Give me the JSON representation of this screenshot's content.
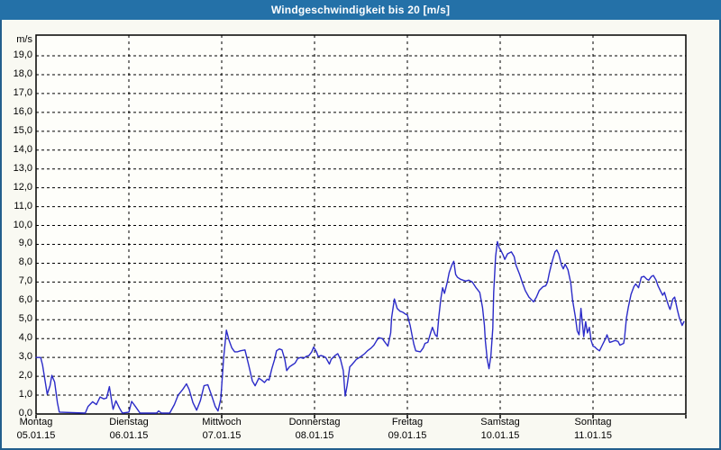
{
  "window": {
    "title": "Windgeschwindigkeit bis 20 [m/s]"
  },
  "colors": {
    "title_bar_bg": "#2471a8",
    "title_text": "#ffffff",
    "frame_border": "#235e8c",
    "window_bg": "#f9f9f2",
    "plot_bg": "#fefefa",
    "grid": "#000000",
    "axis_border": "#000000",
    "axis_text": "#000000",
    "line": "#2b2bc8"
  },
  "chart_data": {
    "type": "line",
    "title": "Windgeschwindigkeit bis 20 [m/s]",
    "xlabel": "",
    "ylabel": "m/s",
    "ylim": [
      0,
      20.1
    ],
    "y_tick_labels": [
      "0,0",
      "1,0",
      "2,0",
      "3,0",
      "4,0",
      "5,0",
      "6,0",
      "7,0",
      "8,0",
      "9,0",
      "10,0",
      "11,0",
      "12,0",
      "13,0",
      "14,0",
      "15,0",
      "16,0",
      "17,0",
      "18,0",
      "19,0"
    ],
    "grid": "dashed",
    "legend": "none",
    "x_range_days": [
      0,
      7
    ],
    "x_axis_days": [
      {
        "weekday": "Montag",
        "date": "05.01.15"
      },
      {
        "weekday": "Dienstag",
        "date": "06.01.15"
      },
      {
        "weekday": "Mittwoch",
        "date": "07.01.15"
      },
      {
        "weekday": "Donnerstag",
        "date": "08.01.15"
      },
      {
        "weekday": "Freitag",
        "date": "09.01.15"
      },
      {
        "weekday": "Samstag",
        "date": "10.01.15"
      },
      {
        "weekday": "Sonntag",
        "date": "11.01.15"
      }
    ],
    "series": [
      {
        "name": "Windgeschwindigkeit",
        "unit": "m/s",
        "color": "#2b2bc8",
        "points": [
          [
            0.0,
            3.0
          ],
          [
            0.05,
            3.0
          ],
          [
            0.07,
            2.6
          ],
          [
            0.12,
            1.05
          ],
          [
            0.15,
            1.5
          ],
          [
            0.17,
            2.05
          ],
          [
            0.2,
            1.7
          ],
          [
            0.23,
            0.6
          ],
          [
            0.25,
            0.1
          ],
          [
            0.53,
            0.05
          ],
          [
            0.56,
            0.4
          ],
          [
            0.61,
            0.65
          ],
          [
            0.65,
            0.5
          ],
          [
            0.69,
            0.9
          ],
          [
            0.73,
            0.8
          ],
          [
            0.76,
            0.85
          ],
          [
            0.79,
            1.45
          ],
          [
            0.82,
            0.5
          ],
          [
            0.83,
            0.25
          ],
          [
            0.86,
            0.7
          ],
          [
            0.9,
            0.3
          ],
          [
            0.93,
            0.05
          ],
          [
            1.0,
            0.1
          ],
          [
            1.03,
            0.67
          ],
          [
            1.07,
            0.4
          ],
          [
            1.12,
            0.05
          ],
          [
            1.3,
            0.05
          ],
          [
            1.32,
            0.16
          ],
          [
            1.35,
            0.05
          ],
          [
            1.44,
            0.05
          ],
          [
            1.49,
            0.5
          ],
          [
            1.53,
            1.0
          ],
          [
            1.58,
            1.3
          ],
          [
            1.62,
            1.6
          ],
          [
            1.65,
            1.3
          ],
          [
            1.69,
            0.6
          ],
          [
            1.73,
            0.2
          ],
          [
            1.77,
            0.7
          ],
          [
            1.81,
            1.5
          ],
          [
            1.85,
            1.55
          ],
          [
            1.89,
            1.0
          ],
          [
            1.93,
            0.4
          ],
          [
            1.96,
            0.16
          ],
          [
            1.99,
            0.8
          ],
          [
            2.02,
            2.95
          ],
          [
            2.05,
            4.45
          ],
          [
            2.08,
            3.9
          ],
          [
            2.11,
            3.5
          ],
          [
            2.14,
            3.3
          ],
          [
            2.17,
            3.3
          ],
          [
            2.2,
            3.35
          ],
          [
            2.25,
            3.4
          ],
          [
            2.29,
            2.6
          ],
          [
            2.33,
            1.75
          ],
          [
            2.36,
            1.5
          ],
          [
            2.4,
            1.9
          ],
          [
            2.43,
            1.8
          ],
          [
            2.46,
            1.67
          ],
          [
            2.49,
            1.85
          ],
          [
            2.51,
            1.8
          ],
          [
            2.54,
            2.4
          ],
          [
            2.57,
            2.9
          ],
          [
            2.59,
            3.35
          ],
          [
            2.62,
            3.45
          ],
          [
            2.65,
            3.4
          ],
          [
            2.68,
            2.9
          ],
          [
            2.7,
            2.3
          ],
          [
            2.73,
            2.5
          ],
          [
            2.76,
            2.6
          ],
          [
            2.79,
            2.7
          ],
          [
            2.82,
            2.95
          ],
          [
            2.85,
            3.0
          ],
          [
            2.88,
            2.95
          ],
          [
            2.91,
            3.05
          ],
          [
            2.94,
            3.1
          ],
          [
            2.97,
            3.3
          ],
          [
            2.99,
            3.55
          ],
          [
            3.02,
            3.3
          ],
          [
            3.04,
            3.05
          ],
          [
            3.07,
            3.1
          ],
          [
            3.1,
            3.05
          ],
          [
            3.12,
            3.0
          ],
          [
            3.16,
            2.65
          ],
          [
            3.18,
            2.9
          ],
          [
            3.22,
            3.1
          ],
          [
            3.25,
            3.2
          ],
          [
            3.28,
            2.9
          ],
          [
            3.31,
            2.3
          ],
          [
            3.33,
            0.95
          ],
          [
            3.35,
            1.5
          ],
          [
            3.38,
            2.5
          ],
          [
            3.4,
            2.6
          ],
          [
            3.45,
            2.9
          ],
          [
            3.5,
            3.05
          ],
          [
            3.54,
            3.2
          ],
          [
            3.57,
            3.35
          ],
          [
            3.61,
            3.5
          ],
          [
            3.64,
            3.65
          ],
          [
            3.67,
            3.9
          ],
          [
            3.69,
            4.05
          ],
          [
            3.73,
            4.0
          ],
          [
            3.76,
            3.8
          ],
          [
            3.79,
            3.6
          ],
          [
            3.82,
            4.3
          ],
          [
            3.83,
            5.1
          ],
          [
            3.86,
            6.1
          ],
          [
            3.89,
            5.6
          ],
          [
            3.92,
            5.45
          ],
          [
            3.95,
            5.4
          ],
          [
            3.98,
            5.3
          ],
          [
            4.0,
            5.25
          ],
          [
            4.03,
            4.7
          ],
          [
            4.05,
            4.2
          ],
          [
            4.07,
            3.7
          ],
          [
            4.09,
            3.35
          ],
          [
            4.14,
            3.3
          ],
          [
            4.17,
            3.5
          ],
          [
            4.19,
            3.75
          ],
          [
            4.22,
            3.8
          ],
          [
            4.25,
            4.3
          ],
          [
            4.27,
            4.6
          ],
          [
            4.3,
            4.2
          ],
          [
            4.32,
            4.1
          ],
          [
            4.34,
            5.2
          ],
          [
            4.36,
            6.1
          ],
          [
            4.38,
            6.7
          ],
          [
            4.4,
            6.4
          ],
          [
            4.43,
            7.0
          ],
          [
            4.45,
            7.5
          ],
          [
            4.48,
            7.9
          ],
          [
            4.5,
            8.1
          ],
          [
            4.52,
            7.4
          ],
          [
            4.54,
            7.25
          ],
          [
            4.57,
            7.15
          ],
          [
            4.6,
            7.1
          ],
          [
            4.63,
            7.05
          ],
          [
            4.66,
            7.1
          ],
          [
            4.7,
            7.0
          ],
          [
            4.74,
            6.7
          ],
          [
            4.78,
            6.45
          ],
          [
            4.81,
            5.65
          ],
          [
            4.83,
            4.7
          ],
          [
            4.84,
            3.9
          ],
          [
            4.86,
            2.9
          ],
          [
            4.88,
            2.4
          ],
          [
            4.9,
            3.1
          ],
          [
            4.92,
            4.55
          ],
          [
            4.93,
            6.45
          ],
          [
            4.95,
            8.35
          ],
          [
            4.97,
            9.15
          ],
          [
            4.99,
            8.8
          ],
          [
            5.0,
            8.75
          ],
          [
            5.03,
            8.45
          ],
          [
            5.05,
            8.2
          ],
          [
            5.08,
            8.5
          ],
          [
            5.12,
            8.6
          ],
          [
            5.15,
            8.35
          ],
          [
            5.17,
            7.9
          ],
          [
            5.21,
            7.4
          ],
          [
            5.24,
            6.95
          ],
          [
            5.27,
            6.55
          ],
          [
            5.31,
            6.2
          ],
          [
            5.34,
            6.05
          ],
          [
            5.36,
            5.95
          ],
          [
            5.39,
            6.2
          ],
          [
            5.42,
            6.55
          ],
          [
            5.46,
            6.75
          ],
          [
            5.49,
            6.8
          ],
          [
            5.51,
            7.0
          ],
          [
            5.53,
            7.5
          ],
          [
            5.56,
            8.1
          ],
          [
            5.59,
            8.6
          ],
          [
            5.61,
            8.7
          ],
          [
            5.63,
            8.5
          ],
          [
            5.66,
            7.9
          ],
          [
            5.68,
            7.7
          ],
          [
            5.7,
            7.95
          ],
          [
            5.73,
            7.65
          ],
          [
            5.76,
            6.95
          ],
          [
            5.78,
            6.05
          ],
          [
            5.81,
            5.15
          ],
          [
            5.83,
            4.4
          ],
          [
            5.85,
            4.2
          ],
          [
            5.87,
            5.6
          ],
          [
            5.9,
            4.1
          ],
          [
            5.92,
            4.9
          ],
          [
            5.94,
            4.3
          ],
          [
            5.96,
            4.6
          ],
          [
            5.98,
            3.9
          ],
          [
            6.0,
            3.6
          ],
          [
            6.02,
            3.55
          ],
          [
            6.04,
            3.45
          ],
          [
            6.07,
            3.35
          ],
          [
            6.1,
            3.65
          ],
          [
            6.14,
            4.05
          ],
          [
            6.15,
            4.2
          ],
          [
            6.18,
            3.8
          ],
          [
            6.21,
            3.85
          ],
          [
            6.24,
            3.9
          ],
          [
            6.27,
            3.85
          ],
          [
            6.29,
            3.65
          ],
          [
            6.33,
            3.75
          ],
          [
            6.34,
            4.05
          ],
          [
            6.36,
            5.1
          ],
          [
            6.38,
            5.65
          ],
          [
            6.41,
            6.35
          ],
          [
            6.44,
            6.75
          ],
          [
            6.46,
            6.9
          ],
          [
            6.49,
            6.7
          ],
          [
            6.52,
            7.25
          ],
          [
            6.55,
            7.3
          ],
          [
            6.58,
            7.15
          ],
          [
            6.6,
            7.1
          ],
          [
            6.63,
            7.3
          ],
          [
            6.65,
            7.35
          ],
          [
            6.68,
            7.1
          ],
          [
            6.7,
            6.8
          ],
          [
            6.73,
            6.5
          ],
          [
            6.75,
            6.3
          ],
          [
            6.77,
            6.45
          ],
          [
            6.8,
            5.95
          ],
          [
            6.82,
            5.65
          ],
          [
            6.83,
            5.55
          ],
          [
            6.86,
            6.1
          ],
          [
            6.88,
            6.2
          ],
          [
            6.91,
            5.5
          ],
          [
            6.93,
            5.1
          ],
          [
            6.96,
            4.7
          ],
          [
            6.98,
            4.9
          ]
        ]
      }
    ]
  }
}
